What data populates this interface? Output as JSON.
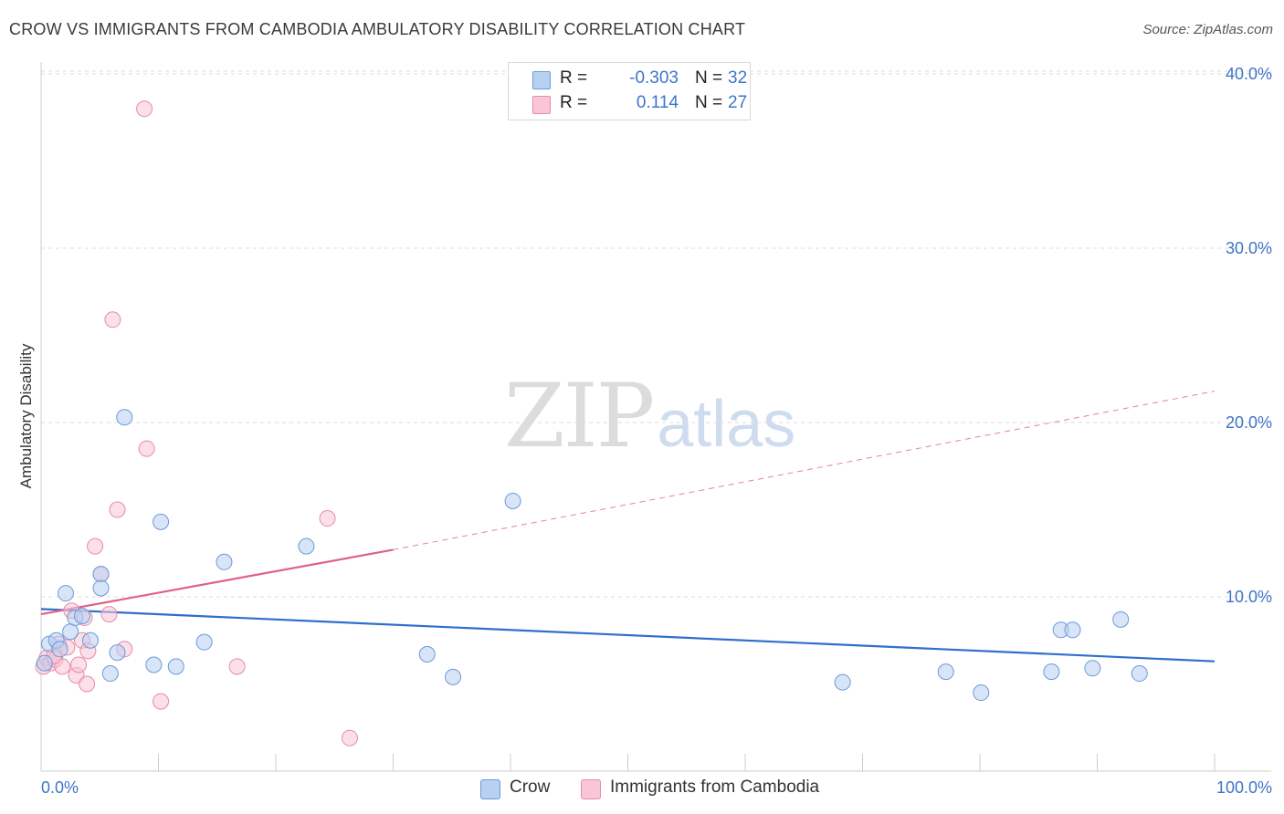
{
  "header": {
    "title": "CROW VS IMMIGRANTS FROM CAMBODIA AMBULATORY DISABILITY CORRELATION CHART",
    "source": "Source: ZipAtlas.com"
  },
  "watermark": {
    "zip": "ZIP",
    "atlas": "atlas"
  },
  "legend": {
    "crow": {
      "r_label": "R =",
      "r_value": "-0.303",
      "n_label": "N =",
      "n_value": "32"
    },
    "cambodia": {
      "r_label": "R =",
      "r_value": "0.114",
      "n_label": "N =",
      "n_value": "27"
    }
  },
  "bottom_legend": {
    "crow": "Crow",
    "cambodia": "Immigrants from Cambodia"
  },
  "colors": {
    "crow_fill": "#b8d0f2",
    "crow_stroke": "#6a9ad8",
    "crow_line": "#2f6fcc",
    "cambodia_fill": "#f8c6d6",
    "cambodia_stroke": "#e88aa8",
    "cambodia_line": "#e0608a",
    "tick_text": "#3f74c8",
    "grid": "#dddddd"
  },
  "chart_data": {
    "type": "scatter",
    "title": "CROW VS IMMIGRANTS FROM CAMBODIA AMBULATORY DISABILITY CORRELATION CHART",
    "xlabel": "",
    "ylabel": "Ambulatory Disability",
    "xlim": [
      0,
      100
    ],
    "ylim": [
      0,
      42
    ],
    "x_tick_labels": [
      "0.0%",
      "100.0%"
    ],
    "y_ticks": [
      10,
      20,
      30,
      40
    ],
    "y_tick_labels": [
      "10.0%",
      "20.0%",
      "30.0%",
      "40.0%"
    ],
    "grid": "horizontal dashed",
    "legend_placement": "top-center",
    "series": [
      {
        "name": "Crow",
        "r": -0.303,
        "n": 32,
        "points": [
          [
            0.3,
            6.2
          ],
          [
            0.7,
            7.3
          ],
          [
            1.3,
            7.5
          ],
          [
            1.6,
            7.0
          ],
          [
            2.1,
            10.2
          ],
          [
            2.5,
            8.0
          ],
          [
            2.9,
            8.8
          ],
          [
            3.5,
            8.9
          ],
          [
            4.2,
            7.5
          ],
          [
            5.1,
            11.3
          ],
          [
            5.1,
            10.5
          ],
          [
            5.9,
            5.6
          ],
          [
            6.5,
            6.8
          ],
          [
            7.1,
            20.3
          ],
          [
            9.6,
            6.1
          ],
          [
            10.2,
            14.3
          ],
          [
            11.5,
            6.0
          ],
          [
            13.9,
            7.4
          ],
          [
            15.6,
            12.0
          ],
          [
            22.6,
            12.9
          ],
          [
            32.9,
            6.7
          ],
          [
            35.1,
            5.4
          ],
          [
            40.2,
            15.5
          ],
          [
            68.3,
            5.1
          ],
          [
            77.1,
            5.7
          ],
          [
            80.1,
            4.5
          ],
          [
            86.1,
            5.7
          ],
          [
            86.9,
            8.1
          ],
          [
            87.9,
            8.1
          ],
          [
            89.6,
            5.9
          ],
          [
            92.0,
            8.7
          ],
          [
            93.6,
            5.6
          ]
        ],
        "trend": {
          "x0": 0,
          "y0": 9.3,
          "x1": 100,
          "y1": 6.3
        }
      },
      {
        "name": "Immigrants from Cambodia",
        "r": 0.114,
        "n": 27,
        "points": [
          [
            0.2,
            6.0
          ],
          [
            0.5,
            6.5
          ],
          [
            0.8,
            6.2
          ],
          [
            1.2,
            6.4
          ],
          [
            1.5,
            7.3
          ],
          [
            1.8,
            6.0
          ],
          [
            2.2,
            7.1
          ],
          [
            2.6,
            9.2
          ],
          [
            3.0,
            5.5
          ],
          [
            3.2,
            6.1
          ],
          [
            3.5,
            7.5
          ],
          [
            3.9,
            5.0
          ],
          [
            4.0,
            6.9
          ],
          [
            4.6,
            12.9
          ],
          [
            5.1,
            11.3
          ],
          [
            5.8,
            9.0
          ],
          [
            6.1,
            25.9
          ],
          [
            6.5,
            15.0
          ],
          [
            7.1,
            7.0
          ],
          [
            8.8,
            38.0
          ],
          [
            9.0,
            18.5
          ],
          [
            10.2,
            4.0
          ],
          [
            16.7,
            6.0
          ],
          [
            24.4,
            14.5
          ],
          [
            26.3,
            1.9
          ],
          [
            3.7,
            8.8
          ],
          [
            1.1,
            6.6
          ]
        ],
        "trend": {
          "x0": 0,
          "y0": 9.0,
          "x1": 30,
          "y1": 12.7,
          "dashed_to_x": 100,
          "dashed_to_y": 21.8
        }
      }
    ]
  }
}
